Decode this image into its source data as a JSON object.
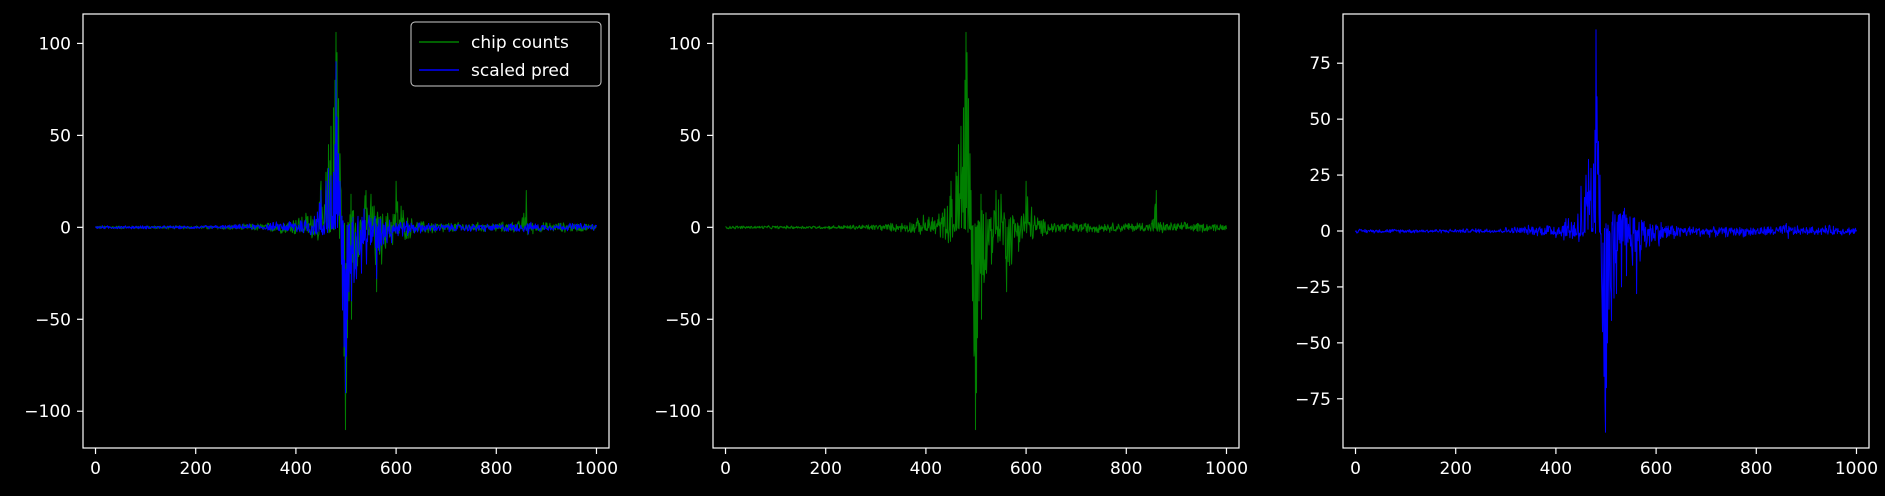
{
  "figure": {
    "background": "#000000",
    "foreground": "#ffffff"
  },
  "chart_data": [
    {
      "type": "line",
      "title": "",
      "xlabel": "",
      "ylabel": "",
      "xlim": [
        -25,
        1025
      ],
      "ylim": [
        -120,
        116
      ],
      "xticks": [
        0,
        200,
        400,
        600,
        800,
        1000
      ],
      "yticks": [
        -100,
        -50,
        0,
        50,
        100
      ],
      "legend": {
        "placement": "top-right",
        "entries": [
          "chip counts",
          "scaled pred"
        ]
      },
      "series": [
        {
          "name": "chip counts",
          "color": "#008000",
          "x": [
            0,
            100,
            200,
            300,
            350,
            380,
            400,
            420,
            440,
            450,
            460,
            465,
            470,
            475,
            478,
            480,
            482,
            485,
            488,
            490,
            492,
            495,
            498,
            500,
            502,
            505,
            508,
            510,
            515,
            520,
            530,
            540,
            550,
            560,
            570,
            580,
            600,
            620,
            640,
            700,
            750,
            800,
            850,
            860,
            862,
            865,
            870,
            900,
            950,
            1000
          ],
          "y": [
            0,
            0,
            0,
            0,
            0,
            0,
            0,
            0,
            0,
            0,
            0,
            0,
            0,
            0,
            0,
            0,
            0,
            0,
            0,
            0,
            0,
            0,
            0,
            0,
            0,
            0,
            0,
            0,
            0,
            0,
            0,
            0,
            0,
            0,
            0,
            0,
            0,
            0,
            0,
            0,
            0,
            0,
            0,
            0,
            0,
            0,
            0,
            0,
            0,
            0
          ],
          "upper": [
            1,
            1,
            1,
            2,
            3,
            5,
            8,
            10,
            15,
            25,
            30,
            45,
            55,
            65,
            80,
            106,
            95,
            70,
            40,
            20,
            10,
            5,
            4,
            3,
            5,
            8,
            12,
            18,
            15,
            12,
            15,
            20,
            18,
            12,
            10,
            8,
            25,
            8,
            4,
            3,
            3,
            3,
            4,
            20,
            8,
            4,
            3,
            3,
            3,
            2
          ],
          "lower": [
            -1,
            -1,
            -1,
            -2,
            -3,
            -4,
            -5,
            -6,
            -8,
            -10,
            -5,
            -4,
            -3,
            -3,
            -2,
            -2,
            -3,
            -5,
            -10,
            -20,
            -40,
            -70,
            -110,
            -90,
            -60,
            -40,
            -25,
            -50,
            -30,
            -25,
            -20,
            -15,
            -10,
            -35,
            -20,
            -15,
            -10,
            -8,
            -5,
            -4,
            -3,
            -3,
            -3,
            -3,
            -5,
            -8,
            -4,
            -3,
            -3,
            -2
          ]
        },
        {
          "name": "scaled pred",
          "color": "#0000ff",
          "x": [
            0,
            100,
            200,
            300,
            350,
            380,
            400,
            420,
            440,
            450,
            460,
            465,
            470,
            475,
            478,
            480,
            482,
            485,
            488,
            490,
            492,
            495,
            498,
            500,
            502,
            505,
            508,
            510,
            515,
            520,
            530,
            540,
            550,
            560,
            570,
            580,
            600,
            620,
            640,
            700,
            750,
            800,
            850,
            860,
            862,
            865,
            870,
            900,
            950,
            1000
          ],
          "y": [
            0,
            0,
            0,
            0,
            0,
            0,
            0,
            0,
            0,
            0,
            0,
            0,
            0,
            0,
            0,
            0,
            0,
            0,
            0,
            0,
            0,
            0,
            0,
            0,
            0,
            0,
            0,
            0,
            0,
            0,
            0,
            0,
            0,
            0,
            0,
            0,
            0,
            0,
            0,
            0,
            0,
            0,
            0,
            0,
            0,
            0,
            0,
            0,
            0,
            0
          ],
          "upper": [
            1,
            1,
            1,
            2,
            3,
            4,
            6,
            8,
            12,
            20,
            25,
            32,
            28,
            30,
            45,
            90,
            60,
            40,
            25,
            15,
            10,
            6,
            5,
            4,
            6,
            8,
            10,
            12,
            12,
            10,
            12,
            15,
            12,
            8,
            8,
            6,
            6,
            4,
            3,
            2,
            2,
            2,
            3,
            4,
            3,
            3,
            3,
            2,
            3,
            2
          ],
          "lower": [
            -1,
            -1,
            -1,
            -1,
            -2,
            -3,
            -4,
            -5,
            -6,
            -7,
            -5,
            -4,
            -3,
            -3,
            -2,
            -2,
            -3,
            -5,
            -10,
            -20,
            -45,
            -65,
            -90,
            -70,
            -50,
            -35,
            -25,
            -40,
            -30,
            -28,
            -25,
            -20,
            -15,
            -28,
            -15,
            -12,
            -8,
            -6,
            -4,
            -3,
            -3,
            -3,
            -3,
            -3,
            -4,
            -5,
            -3,
            -2,
            -2,
            -2
          ]
        }
      ]
    },
    {
      "type": "line",
      "title": "",
      "xlabel": "",
      "ylabel": "",
      "xlim": [
        -25,
        1025
      ],
      "ylim": [
        -120,
        116
      ],
      "xticks": [
        0,
        200,
        400,
        600,
        800,
        1000
      ],
      "yticks": [
        -100,
        -50,
        0,
        50,
        100
      ],
      "series": [
        {
          "color": "#008000",
          "x": [
            0,
            100,
            200,
            300,
            350,
            380,
            400,
            420,
            440,
            450,
            460,
            465,
            470,
            475,
            478,
            480,
            482,
            485,
            488,
            490,
            492,
            495,
            498,
            500,
            502,
            505,
            508,
            510,
            515,
            520,
            530,
            540,
            550,
            560,
            570,
            580,
            600,
            620,
            640,
            700,
            750,
            800,
            850,
            860,
            862,
            865,
            870,
            900,
            950,
            1000
          ],
          "y": [
            0,
            0,
            0,
            0,
            0,
            0,
            0,
            0,
            0,
            0,
            0,
            0,
            0,
            0,
            0,
            0,
            0,
            0,
            0,
            0,
            0,
            0,
            0,
            0,
            0,
            0,
            0,
            0,
            0,
            0,
            0,
            0,
            0,
            0,
            0,
            0,
            0,
            0,
            0,
            0,
            0,
            0,
            0,
            0,
            0,
            0,
            0,
            0,
            0,
            0
          ],
          "upper": [
            1,
            1,
            1,
            2,
            3,
            5,
            8,
            10,
            15,
            25,
            30,
            45,
            55,
            65,
            80,
            106,
            95,
            70,
            40,
            20,
            10,
            5,
            4,
            3,
            5,
            8,
            12,
            18,
            15,
            12,
            15,
            20,
            18,
            12,
            10,
            8,
            25,
            8,
            4,
            3,
            3,
            3,
            4,
            20,
            8,
            4,
            3,
            3,
            3,
            2
          ],
          "lower": [
            -1,
            -1,
            -1,
            -2,
            -3,
            -4,
            -5,
            -6,
            -8,
            -10,
            -5,
            -4,
            -3,
            -3,
            -2,
            -2,
            -3,
            -5,
            -10,
            -20,
            -40,
            -70,
            -110,
            -90,
            -60,
            -40,
            -25,
            -50,
            -30,
            -25,
            -20,
            -15,
            -10,
            -35,
            -20,
            -15,
            -10,
            -8,
            -5,
            -4,
            -3,
            -3,
            -3,
            -3,
            -5,
            -8,
            -4,
            -3,
            -3,
            -2
          ]
        }
      ]
    },
    {
      "type": "line",
      "title": "",
      "xlabel": "",
      "ylabel": "",
      "xlim": [
        -25,
        1025
      ],
      "ylim": [
        -97,
        97
      ],
      "xticks": [
        0,
        200,
        400,
        600,
        800,
        1000
      ],
      "yticks": [
        -75,
        -50,
        -25,
        0,
        25,
        50,
        75
      ],
      "series": [
        {
          "color": "#0000ff",
          "x": [
            0,
            100,
            200,
            300,
            350,
            380,
            400,
            420,
            440,
            450,
            460,
            465,
            470,
            475,
            478,
            480,
            482,
            485,
            488,
            490,
            492,
            495,
            498,
            500,
            502,
            505,
            508,
            510,
            515,
            520,
            530,
            540,
            550,
            560,
            570,
            580,
            600,
            620,
            640,
            700,
            750,
            800,
            850,
            860,
            862,
            865,
            870,
            900,
            950,
            1000
          ],
          "y": [
            0,
            0,
            0,
            0,
            0,
            0,
            0,
            0,
            0,
            0,
            0,
            0,
            0,
            0,
            0,
            0,
            0,
            0,
            0,
            0,
            0,
            0,
            0,
            0,
            0,
            0,
            0,
            0,
            0,
            0,
            0,
            0,
            0,
            0,
            0,
            0,
            0,
            0,
            0,
            0,
            0,
            0,
            0,
            0,
            0,
            0,
            0,
            0,
            0,
            0
          ],
          "upper": [
            1,
            1,
            1,
            2,
            3,
            4,
            6,
            8,
            12,
            20,
            25,
            32,
            28,
            30,
            45,
            90,
            60,
            40,
            25,
            15,
            10,
            6,
            5,
            4,
            6,
            8,
            10,
            12,
            12,
            10,
            12,
            15,
            12,
            8,
            8,
            6,
            6,
            4,
            3,
            2,
            2,
            2,
            3,
            4,
            3,
            3,
            3,
            2,
            3,
            2
          ],
          "lower": [
            -1,
            -1,
            -1,
            -1,
            -2,
            -3,
            -4,
            -5,
            -6,
            -7,
            -5,
            -4,
            -3,
            -3,
            -2,
            -2,
            -3,
            -5,
            -10,
            -20,
            -45,
            -65,
            -90,
            -70,
            -50,
            -35,
            -25,
            -40,
            -30,
            -28,
            -25,
            -20,
            -15,
            -28,
            -15,
            -12,
            -8,
            -6,
            -4,
            -3,
            -3,
            -3,
            -3,
            -3,
            -4,
            -5,
            -3,
            -2,
            -2,
            -2
          ]
        }
      ]
    }
  ]
}
